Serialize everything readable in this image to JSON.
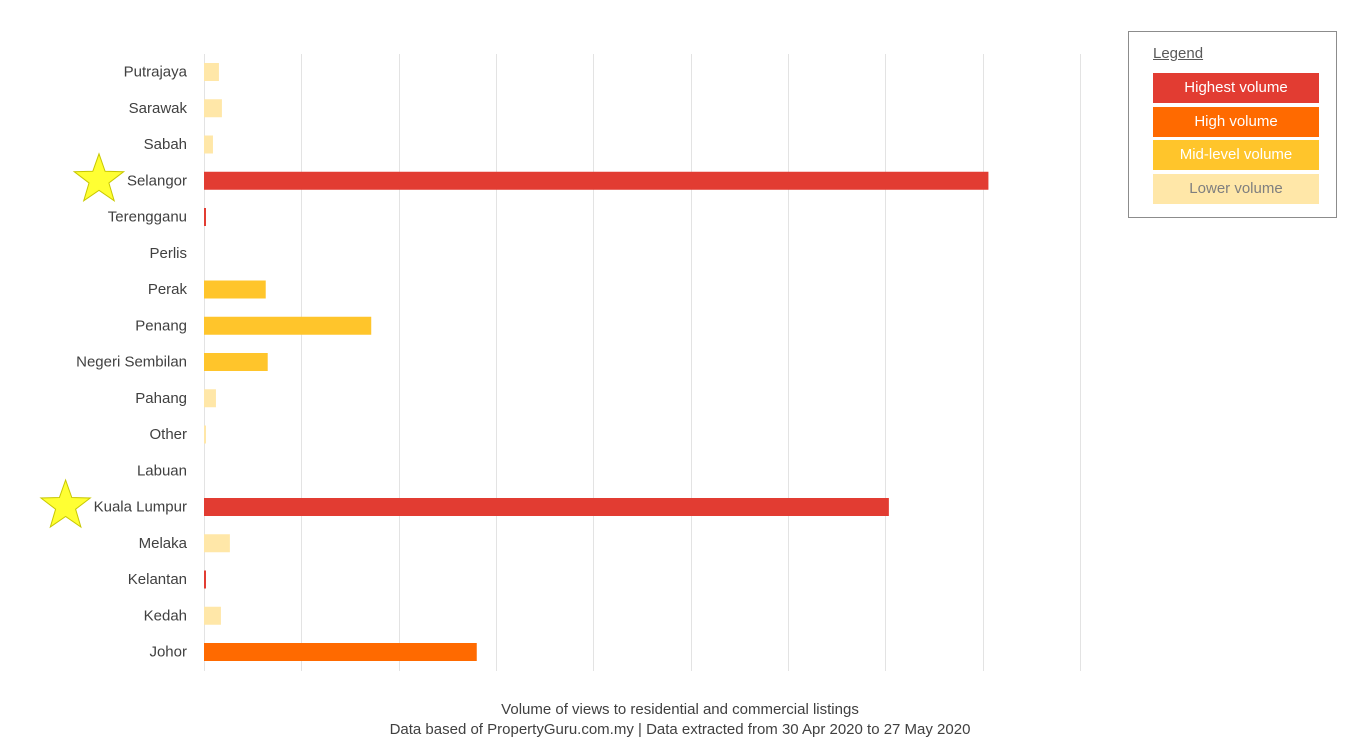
{
  "chart_data": {
    "type": "bar",
    "orientation": "horizontal",
    "categories": [
      "Putrajaya",
      "Sarawak",
      "Sabah",
      "Selangor",
      "Terengganu",
      "Perlis",
      "Perak",
      "Penang",
      "Negeri Sembilan",
      "Pahang",
      "Other",
      "Labuan",
      "Kuala Lumpur",
      "Melaka",
      "Kelantan",
      "Kedah",
      "Johor"
    ],
    "values": [
      15,
      18,
      9,
      788,
      2,
      0,
      62,
      168,
      64,
      12,
      2,
      0,
      688,
      26,
      2,
      17,
      274
    ],
    "volume_levels": [
      "lower",
      "lower",
      "lower",
      "highest",
      "highest",
      "lower",
      "mid",
      "mid",
      "mid",
      "lower",
      "lower",
      "lower",
      "highest",
      "lower",
      "highest",
      "lower",
      "high"
    ],
    "highlighted": [
      "Selangor",
      "Kuala Lumpur"
    ],
    "xlim": [
      0,
      880
    ],
    "gridlines": "vertical",
    "legend_position": "top-right",
    "title": "",
    "xlabel": "",
    "ylabel": ""
  },
  "legend": {
    "title": "Legend",
    "items": [
      {
        "label": "Highest  volume",
        "color": "#e23c32"
      },
      {
        "label": "High  volume",
        "color": "#ff6a00"
      },
      {
        "label": "Mid-level  volume",
        "color": "#ffc52b"
      },
      {
        "label": "Lower  volume",
        "color": "#ffe7a8"
      }
    ]
  },
  "level_colors": {
    "highest": "#e23c32",
    "high": "#ff6a00",
    "mid": "#ffc52b",
    "lower": "#ffe7a8"
  },
  "highlight_color": "#ffff33",
  "captions": {
    "line1": "Volume of views to residential and commercial listings",
    "line2": "Data based of PropertyGuru.com.my | Data extracted from 30 Apr 2020 to 27 May 2020"
  }
}
